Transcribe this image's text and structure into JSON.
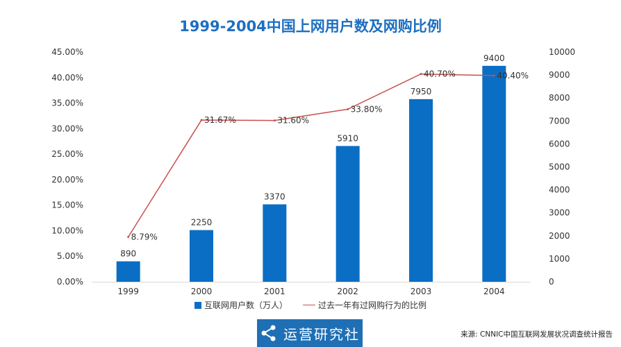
{
  "chart_data": {
    "type": "bar",
    "title": "1999-2004中国上网用户数及网购比例",
    "categories": [
      "1999",
      "2000",
      "2001",
      "2002",
      "2003",
      "2004"
    ],
    "series": [
      {
        "name": "互联网用户数（万人）",
        "type": "bar",
        "axis": "right",
        "values": [
          890,
          2250,
          3370,
          5910,
          7950,
          9400
        ],
        "data_labels": [
          "890",
          "2250",
          "3370",
          "5910",
          "7950",
          "9400"
        ],
        "color": "#0a6ec4"
      },
      {
        "name": "过去一年有过网购行为的比例",
        "type": "line",
        "axis": "left",
        "values": [
          8.79,
          31.67,
          31.6,
          33.8,
          40.7,
          40.4
        ],
        "data_labels": [
          "8.79%",
          "31.67%",
          "31.60%",
          "33.80%",
          "40.70%",
          "40.40%"
        ],
        "color": "#c8504f"
      }
    ],
    "y_left": {
      "range": [
        0,
        45
      ],
      "ticks": [
        "0.00%",
        "5.00%",
        "10.00%",
        "15.00%",
        "20.00%",
        "25.00%",
        "30.00%",
        "35.00%",
        "40.00%",
        "45.00%"
      ]
    },
    "y_right": {
      "range": [
        0,
        10000
      ],
      "ticks": [
        "0",
        "1000",
        "2000",
        "3000",
        "4000",
        "5000",
        "6000",
        "7000",
        "8000",
        "9000",
        "10000"
      ]
    },
    "grid": false,
    "legend_position": "bottom"
  },
  "brand": {
    "text": "运营研究社",
    "icon": "share-icon"
  },
  "source": "来源: CNNIC中国互联网发展状况调查统计报告",
  "colors": {
    "title": "#1e6fc0",
    "bar": "#0a6ec4",
    "line": "#c8504f",
    "brand_bg": "#1f6fb5"
  }
}
